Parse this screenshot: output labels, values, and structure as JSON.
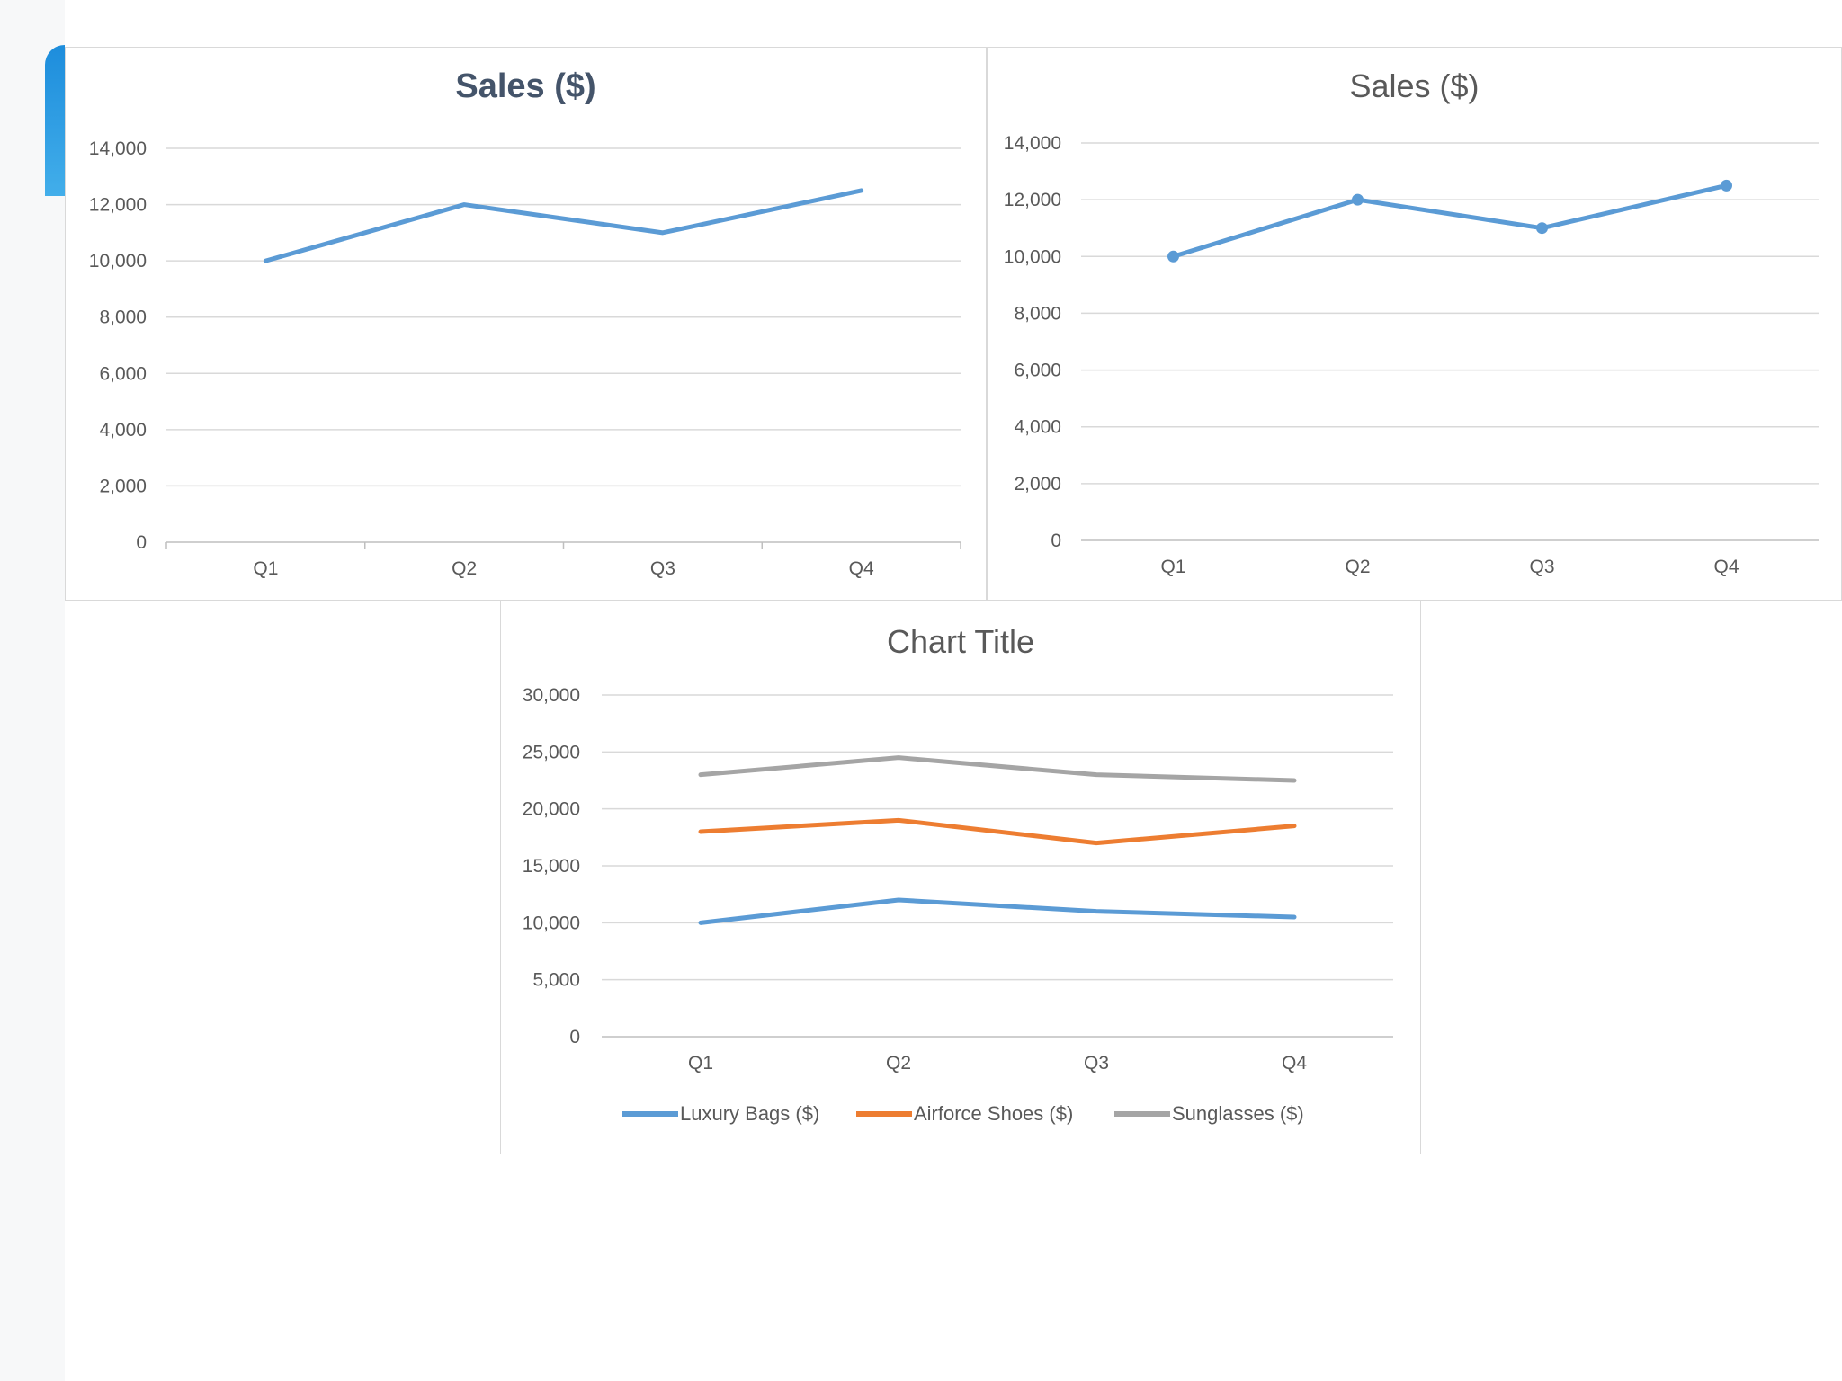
{
  "chart_data": [
    {
      "type": "line",
      "title": "Sales ($)",
      "categories": [
        "Q1",
        "Q2",
        "Q3",
        "Q4"
      ],
      "series": [
        {
          "name": "",
          "values": [
            10000,
            12000,
            11000,
            12500
          ],
          "color": "#5b9bd5"
        }
      ],
      "ylim": [
        0,
        14000
      ],
      "yticks": [
        0,
        2000,
        4000,
        6000,
        8000,
        10000,
        12000,
        14000
      ],
      "ytick_labels": [
        "0",
        "2,000",
        "4,000",
        "6,000",
        "8,000",
        "10,000",
        "12,000",
        "14,000"
      ],
      "markers": false,
      "grid": true,
      "legend": "none"
    },
    {
      "type": "line",
      "title": "Sales ($)",
      "categories": [
        "Q1",
        "Q2",
        "Q3",
        "Q4"
      ],
      "series": [
        {
          "name": "",
          "values": [
            10000,
            12000,
            11000,
            12500
          ],
          "color": "#5b9bd5"
        }
      ],
      "ylim": [
        0,
        14000
      ],
      "yticks": [
        0,
        2000,
        4000,
        6000,
        8000,
        10000,
        12000,
        14000
      ],
      "ytick_labels": [
        "0",
        "2,000",
        "4,000",
        "6,000",
        "8,000",
        "10,000",
        "12,000",
        "14,000"
      ],
      "markers": true,
      "grid": true,
      "legend": "none"
    },
    {
      "type": "line",
      "title": "Chart Title",
      "categories": [
        "Q1",
        "Q2",
        "Q3",
        "Q4"
      ],
      "series": [
        {
          "name": "Luxury Bags ($)",
          "values": [
            10000,
            12000,
            11000,
            10500
          ],
          "color": "#5b9bd5"
        },
        {
          "name": "Airforce Shoes ($)",
          "values": [
            18000,
            19000,
            17000,
            18500
          ],
          "color": "#ed7d31"
        },
        {
          "name": "Sunglasses ($)",
          "values": [
            23000,
            24500,
            23000,
            22500
          ],
          "color": "#a5a5a5"
        }
      ],
      "ylim": [
        0,
        30000
      ],
      "yticks": [
        0,
        5000,
        10000,
        15000,
        20000,
        25000,
        30000
      ],
      "ytick_labels": [
        "0",
        "5,000",
        "10,000",
        "15,000",
        "20,000",
        "25,000",
        "30,000"
      ],
      "markers": false,
      "grid": true,
      "legend": "bottom"
    }
  ]
}
